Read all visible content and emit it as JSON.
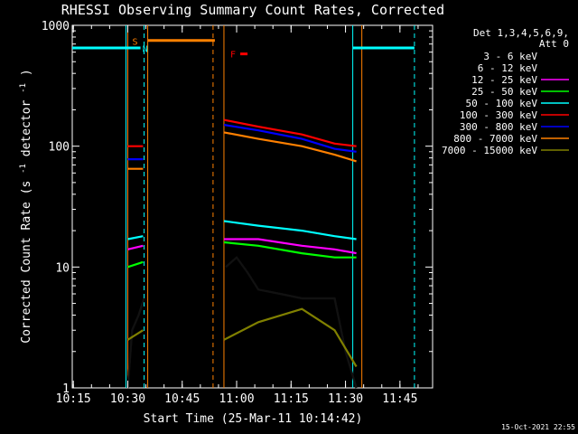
{
  "chart_data": {
    "type": "line",
    "title": "RHESSI Observing Summary Count Rates, Corrected",
    "xlabel": "Start Time (25-Mar-11 10:14:42)",
    "ylabel_prefix": "Corrected Count Rate (s",
    "ylabel_suffix": " detector",
    "ylabel_end": ")",
    "ylabel_exp": "-1",
    "yscale": "log",
    "ylim": [
      1,
      1000
    ],
    "xlim": [
      "10:14:42",
      "11:54:00"
    ],
    "x_ticks": [
      {
        "t": "10:15",
        "label": "10:15"
      },
      {
        "t": "10:30",
        "label": "10:30"
      },
      {
        "t": "10:45",
        "label": "10:45"
      },
      {
        "t": "11:00",
        "label": "11:00"
      },
      {
        "t": "11:15",
        "label": "11:15"
      },
      {
        "t": "11:30",
        "label": "11:30"
      },
      {
        "t": "11:45",
        "label": "11:45"
      }
    ],
    "y_ticks": [
      {
        "v": 1,
        "label": "1"
      },
      {
        "v": 10,
        "label": "10"
      },
      {
        "v": 100,
        "label": "100"
      },
      {
        "v": 1000,
        "label": "1000"
      }
    ],
    "legend_header": [
      "Det 1,3,4,5,6,9,",
      "Att 0"
    ],
    "legend_position": "right",
    "footer_date": "15-Oct-2021 22:55",
    "flags": {
      "saa_label": "S",
      "night_label": "N",
      "flare_label": "F",
      "saa_color": "#ff8000",
      "night_color": "#00ffff",
      "flare_color": "#ff0000",
      "night_level": 650,
      "saa_level": 750,
      "flare_level": 580
    },
    "boundaries": [
      {
        "t": "10:29.5",
        "color": "#00ffff",
        "style": "solid"
      },
      {
        "t": "10:30.0",
        "color": "#ff8000",
        "style": "solid"
      },
      {
        "t": "10:34.5",
        "color": "#00ffff",
        "style": "dashed"
      },
      {
        "t": "10:35.5",
        "color": "#ff8000",
        "style": "solid"
      },
      {
        "t": "10:53.5",
        "color": "#ff8000",
        "style": "dashed"
      },
      {
        "t": "10:56.5",
        "color": "#ff8000",
        "style": "solid"
      },
      {
        "t": "11:32.0",
        "color": "#00ffff",
        "style": "solid"
      },
      {
        "t": "11:34.5",
        "color": "#ff8000",
        "style": "solid"
      },
      {
        "t": "11:49.0",
        "color": "#00ffff",
        "style": "dashed"
      }
    ],
    "night_bars": [
      {
        "start": "10:14:42",
        "end": "10:33.5"
      },
      {
        "start": "11:32.0",
        "end": "11:49.0"
      }
    ],
    "saa_bars": [
      {
        "start": "10:35.5",
        "end": "10:54.0"
      }
    ],
    "flare_bars": [
      {
        "start": "11:01.0",
        "end": "11:03.0"
      }
    ],
    "segments": [
      {
        "start": "10:30.0",
        "end": "10:34.5"
      },
      {
        "start": "10:56.5",
        "end": "11:34.5"
      }
    ],
    "series": [
      {
        "name": "3 - 6 keV",
        "color": "#000000",
        "values": [
          [
            10.5,
            1
          ],
          [
            10.52,
            3
          ],
          [
            10.55,
            4
          ],
          [
            10.58,
            5.5
          ],
          [
            10.9,
            8
          ],
          [
            10.95,
            10
          ],
          [
            11.0,
            12
          ],
          [
            11.05,
            9
          ],
          [
            11.1,
            6.5
          ],
          [
            11.2,
            6
          ],
          [
            11.3,
            5.5
          ],
          [
            11.45,
            5.5
          ],
          [
            11.5,
            2
          ],
          [
            11.55,
            1
          ]
        ]
      },
      {
        "name": "6 - 12 keV",
        "color": "#000000",
        "values": [
          [
            10.5,
            1
          ],
          [
            10.52,
            3
          ],
          [
            10.55,
            4
          ],
          [
            10.58,
            5.5
          ],
          [
            10.9,
            8
          ],
          [
            10.95,
            10
          ],
          [
            11.0,
            12
          ],
          [
            11.05,
            9
          ],
          [
            11.1,
            6.5
          ],
          [
            11.2,
            6
          ],
          [
            11.3,
            5.5
          ],
          [
            11.45,
            5.5
          ],
          [
            11.5,
            2
          ],
          [
            11.55,
            1
          ]
        ]
      },
      {
        "name": "12 - 25 keV",
        "color": "#ff00ff",
        "values": [
          [
            10.5,
            14
          ],
          [
            10.57,
            15
          ],
          [
            10.94,
            17
          ],
          [
            11.1,
            17
          ],
          [
            11.3,
            15
          ],
          [
            11.45,
            14
          ],
          [
            11.55,
            13
          ]
        ]
      },
      {
        "name": "25 - 50 keV",
        "color": "#00ff00",
        "values": [
          [
            10.5,
            10
          ],
          [
            10.57,
            11
          ],
          [
            10.94,
            16
          ],
          [
            11.1,
            15
          ],
          [
            11.3,
            13
          ],
          [
            11.45,
            12
          ],
          [
            11.55,
            12
          ]
        ]
      },
      {
        "name": "50 - 100 keV",
        "color": "#00ffff",
        "values": [
          [
            10.5,
            17
          ],
          [
            10.57,
            18
          ],
          [
            10.94,
            24
          ],
          [
            11.1,
            22
          ],
          [
            11.3,
            20
          ],
          [
            11.45,
            18
          ],
          [
            11.55,
            17
          ]
        ]
      },
      {
        "name": "100 - 300 keV",
        "color": "#ff0000",
        "values": [
          [
            10.5,
            100
          ],
          [
            10.57,
            100
          ],
          [
            10.94,
            165
          ],
          [
            11.1,
            145
          ],
          [
            11.3,
            125
          ],
          [
            11.45,
            105
          ],
          [
            11.55,
            100
          ]
        ]
      },
      {
        "name": "300 - 800 keV",
        "color": "#0000ff",
        "values": [
          [
            10.5,
            78
          ],
          [
            10.57,
            78
          ],
          [
            10.94,
            150
          ],
          [
            11.1,
            135
          ],
          [
            11.3,
            115
          ],
          [
            11.45,
            95
          ],
          [
            11.55,
            90
          ]
        ]
      },
      {
        "name": "800 - 7000 keV",
        "color": "#ff8000",
        "values": [
          [
            10.5,
            65
          ],
          [
            10.57,
            65
          ],
          [
            10.94,
            130
          ],
          [
            11.1,
            115
          ],
          [
            11.3,
            100
          ],
          [
            11.45,
            85
          ],
          [
            11.55,
            75
          ]
        ]
      },
      {
        "name": "7000 - 15000 keV",
        "color": "#808000",
        "values": [
          [
            10.5,
            2.5
          ],
          [
            10.57,
            3
          ],
          [
            10.94,
            2.5
          ],
          [
            11.1,
            3.5
          ],
          [
            11.3,
            4.5
          ],
          [
            11.45,
            3
          ],
          [
            11.55,
            1.5
          ]
        ]
      }
    ],
    "legend": [
      {
        "label": "3 - 6 keV",
        "color": "#000000"
      },
      {
        "label": "6 - 12 keV",
        "color": "#000000"
      },
      {
        "label": "12 - 25 keV",
        "color": "#ff00ff"
      },
      {
        "label": "25 - 50 keV",
        "color": "#00ff00"
      },
      {
        "label": "50 - 100 keV",
        "color": "#00ffff"
      },
      {
        "label": "100 - 300 keV",
        "color": "#ff0000"
      },
      {
        "label": "300 - 800 keV",
        "color": "#0000ff"
      },
      {
        "label": "800 - 7000 keV",
        "color": "#ff8000"
      },
      {
        "label": "7000 - 15000 keV",
        "color": "#808000"
      }
    ]
  }
}
